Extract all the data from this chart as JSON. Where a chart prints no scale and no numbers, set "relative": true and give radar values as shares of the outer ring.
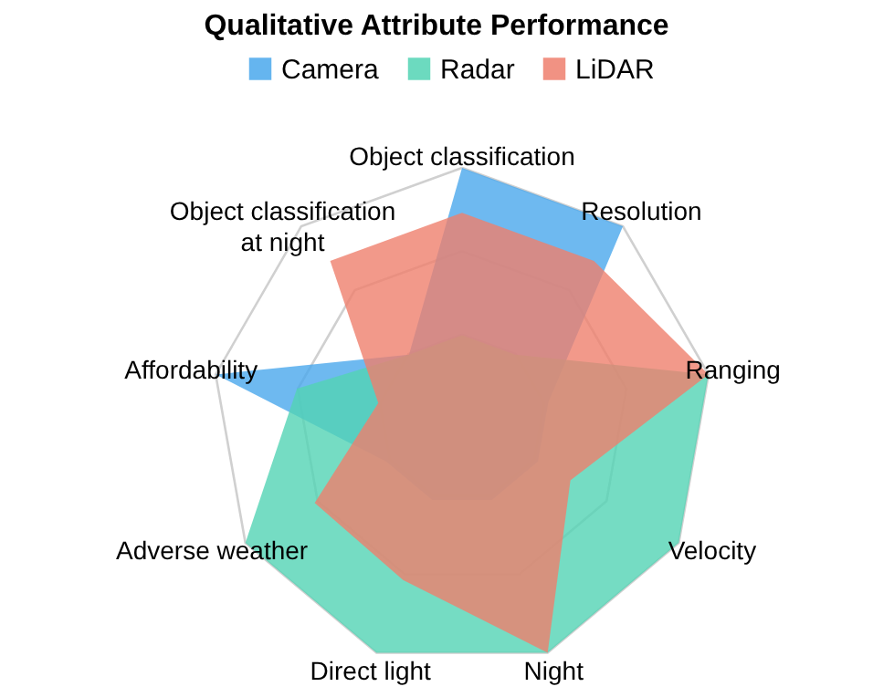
{
  "chart_data": {
    "type": "radar",
    "title": "Qualitative Attribute Performance",
    "relative": true,
    "grid": true,
    "legend": "top",
    "categories": [
      "Object classification",
      "Resolution",
      "Ranging",
      "Velocity",
      "Night",
      "Direct light",
      "Adverse weather",
      "Affordability",
      "Object classification at night"
    ],
    "series": [
      {
        "name": "Camera",
        "color": "#4aa8ec",
        "values": [
          1,
          1,
          0.35,
          0.35,
          0.35,
          0.35,
          0.35,
          1,
          0.33
        ]
      },
      {
        "name": "Radar",
        "color": "#52d3b4",
        "values": [
          0.33,
          0.33,
          1,
          1,
          1,
          1,
          1,
          0.67,
          0.33
        ]
      },
      {
        "name": "LiDAR",
        "color": "#ef7f6d",
        "values": [
          0.82,
          0.82,
          1,
          0.5,
          1,
          0.69,
          0.68,
          0.34,
          0.82
        ]
      }
    ]
  }
}
